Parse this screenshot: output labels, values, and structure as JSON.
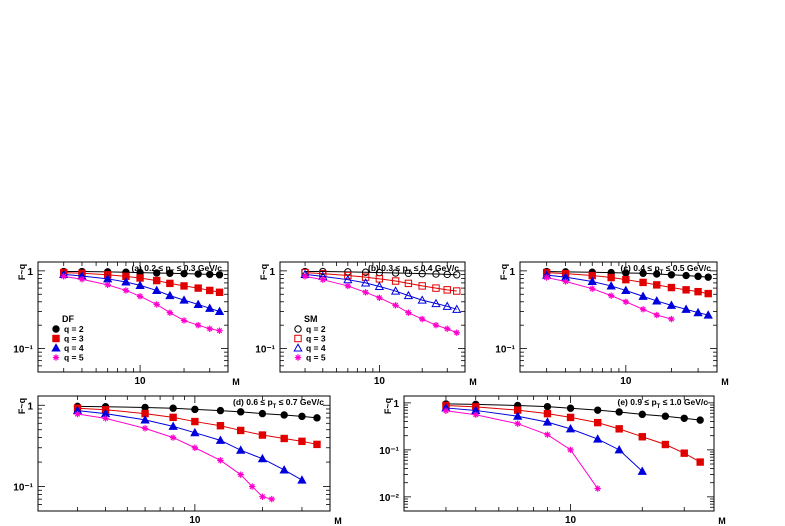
{
  "chart_data": [
    {
      "type": "scatter",
      "title": "(a) 0.2 ≤ p_T ≤ 0.3 GeV/c",
      "title_parts": [
        "(a) 0.2 ≤ p",
        "T",
        " ≤ 0.3 GeV/c"
      ],
      "xlabel": "M",
      "ylabel": "F~q",
      "x_scale": "log",
      "y_scale": "log",
      "xlim": [
        2,
        40
      ],
      "ylim": [
        0.05,
        1.3
      ],
      "x_ticks": [
        {
          "v": 10,
          "label": "10"
        }
      ],
      "y_ticks": [
        {
          "v": 1,
          "label": "1"
        },
        {
          "v": 0.1,
          "label": "10⁻¹"
        }
      ],
      "legend": {
        "title": "DF",
        "placement": "lower-left",
        "entries": [
          "q = 2",
          "q = 3",
          "q = 4",
          "q = 5"
        ]
      },
      "series": [
        {
          "name": "q = 2",
          "color": "#000000",
          "marker": "circle",
          "filled": true,
          "x": [
            3,
            4,
            6,
            8,
            10,
            13,
            16,
            20,
            25,
            30,
            35
          ],
          "y": [
            0.98,
            0.98,
            0.97,
            0.96,
            0.95,
            0.94,
            0.93,
            0.92,
            0.91,
            0.9,
            0.89
          ]
        },
        {
          "name": "q = 3",
          "color": "#e00000",
          "marker": "square",
          "filled": true,
          "x": [
            3,
            4,
            6,
            8,
            10,
            13,
            16,
            20,
            25,
            30,
            35
          ],
          "y": [
            0.95,
            0.93,
            0.89,
            0.85,
            0.81,
            0.75,
            0.69,
            0.64,
            0.6,
            0.56,
            0.53
          ]
        },
        {
          "name": "q = 4",
          "color": "#0000dd",
          "marker": "triangle",
          "filled": true,
          "x": [
            3,
            4,
            6,
            8,
            10,
            13,
            16,
            20,
            25,
            30,
            35
          ],
          "y": [
            0.9,
            0.86,
            0.79,
            0.72,
            0.65,
            0.56,
            0.48,
            0.42,
            0.37,
            0.33,
            0.3
          ]
        },
        {
          "name": "q = 5",
          "color": "#ff00cc",
          "marker": "star",
          "filled": true,
          "x": [
            3,
            4,
            6,
            8,
            10,
            13,
            16,
            20,
            25,
            30,
            35
          ],
          "y": [
            0.85,
            0.78,
            0.66,
            0.56,
            0.47,
            0.37,
            0.29,
            0.23,
            0.2,
            0.18,
            0.17
          ]
        }
      ]
    },
    {
      "type": "scatter",
      "title": "(b) 0.3 ≤ p_T ≤ 0.4 GeV/c",
      "title_parts": [
        "(b) 0.3 ≤ p",
        "T",
        " ≤ 0.4 GeV/c"
      ],
      "xlabel": "M",
      "ylabel": "F~q",
      "x_scale": "log",
      "y_scale": "log",
      "xlim": [
        2,
        40
      ],
      "ylim": [
        0.05,
        1.3
      ],
      "x_ticks": [
        {
          "v": 10,
          "label": "10"
        }
      ],
      "y_ticks": [
        {
          "v": 1,
          "label": "1"
        },
        {
          "v": 0.1,
          "label": "10⁻¹"
        }
      ],
      "legend": {
        "title": "SM",
        "placement": "lower-left",
        "entries": [
          "q = 2",
          "q = 3",
          "q = 4",
          "q = 5"
        ]
      },
      "series": [
        {
          "name": "q = 2",
          "color": "#000000",
          "marker": "circle",
          "filled": false,
          "x": [
            3,
            4,
            6,
            8,
            10,
            13,
            16,
            20,
            25,
            30,
            35
          ],
          "y": [
            0.98,
            0.98,
            0.97,
            0.96,
            0.95,
            0.94,
            0.93,
            0.92,
            0.91,
            0.9,
            0.89
          ]
        },
        {
          "name": "q = 3",
          "color": "#e00000",
          "marker": "square",
          "filled": false,
          "x": [
            3,
            4,
            6,
            8,
            10,
            13,
            16,
            20,
            25,
            30,
            35
          ],
          "y": [
            0.95,
            0.92,
            0.87,
            0.83,
            0.79,
            0.74,
            0.69,
            0.64,
            0.6,
            0.57,
            0.55
          ]
        },
        {
          "name": "q = 4",
          "color": "#0000dd",
          "marker": "triangle",
          "filled": false,
          "x": [
            3,
            4,
            6,
            8,
            10,
            13,
            16,
            20,
            25,
            30,
            35
          ],
          "y": [
            0.9,
            0.85,
            0.77,
            0.7,
            0.63,
            0.55,
            0.48,
            0.42,
            0.38,
            0.35,
            0.32
          ]
        },
        {
          "name": "q = 5",
          "color": "#ff00cc",
          "marker": "star",
          "filled": false,
          "x": [
            3,
            4,
            6,
            8,
            10,
            13,
            16,
            20,
            25,
            30,
            35
          ],
          "y": [
            0.85,
            0.77,
            0.64,
            0.53,
            0.45,
            0.36,
            0.29,
            0.24,
            0.2,
            0.18,
            0.16
          ]
        }
      ]
    },
    {
      "type": "scatter",
      "title": "(c) 0.4 ≤ p_T ≤ 0.5 GeV/c",
      "title_parts": [
        "(c) 0.4 ≤ p",
        "T",
        " ≤ 0.5 GeV/c"
      ],
      "xlabel": "M",
      "ylabel": "F~q",
      "x_scale": "log",
      "y_scale": "log",
      "xlim": [
        2,
        40
      ],
      "ylim": [
        0.05,
        1.3
      ],
      "x_ticks": [
        {
          "v": 10,
          "label": "10"
        }
      ],
      "y_ticks": [
        {
          "v": 1,
          "label": "1"
        },
        {
          "v": 0.1,
          "label": "10⁻¹"
        }
      ],
      "series": [
        {
          "name": "q = 2",
          "color": "#000000",
          "marker": "circle",
          "filled": true,
          "x": [
            3,
            4,
            6,
            8,
            10,
            13,
            16,
            20,
            25,
            30,
            35
          ],
          "y": [
            0.98,
            0.97,
            0.96,
            0.95,
            0.94,
            0.93,
            0.91,
            0.89,
            0.87,
            0.85,
            0.83
          ]
        },
        {
          "name": "q = 3",
          "color": "#e00000",
          "marker": "square",
          "filled": true,
          "x": [
            3,
            4,
            6,
            8,
            10,
            13,
            16,
            20,
            25,
            30,
            35
          ],
          "y": [
            0.95,
            0.92,
            0.87,
            0.82,
            0.77,
            0.71,
            0.66,
            0.61,
            0.57,
            0.54,
            0.51
          ]
        },
        {
          "name": "q = 4",
          "color": "#0000dd",
          "marker": "triangle",
          "filled": true,
          "x": [
            3,
            4,
            6,
            8,
            10,
            13,
            16,
            20,
            25,
            30,
            35
          ],
          "y": [
            0.88,
            0.83,
            0.73,
            0.64,
            0.56,
            0.47,
            0.41,
            0.36,
            0.32,
            0.29,
            0.27
          ]
        },
        {
          "name": "q = 5",
          "color": "#ff00cc",
          "marker": "star",
          "filled": true,
          "x": [
            3,
            4,
            6,
            8,
            10,
            13,
            16,
            20
          ],
          "y": [
            0.82,
            0.73,
            0.59,
            0.48,
            0.4,
            0.32,
            0.27,
            0.24
          ]
        }
      ]
    },
    {
      "type": "scatter",
      "title": "(d) 0.6 ≤ p_T ≤ 0.7 GeV/c",
      "title_parts": [
        "(d) 0.6 ≤ p",
        "T",
        " ≤ 0.7 GeV/c"
      ],
      "xlabel": "M",
      "ylabel": "F~q",
      "x_scale": "log",
      "y_scale": "log",
      "xlim": [
        2,
        40
      ],
      "ylim": [
        0.05,
        1.3
      ],
      "x_ticks": [
        {
          "v": 10,
          "label": "10"
        }
      ],
      "y_ticks": [
        {
          "v": 1,
          "label": "1"
        },
        {
          "v": 0.1,
          "label": "10⁻¹"
        }
      ],
      "series": [
        {
          "name": "q = 2",
          "color": "#000000",
          "marker": "circle",
          "filled": true,
          "x": [
            3,
            4,
            6,
            8,
            10,
            13,
            16,
            20,
            25,
            30,
            35
          ],
          "y": [
            0.97,
            0.96,
            0.94,
            0.92,
            0.89,
            0.86,
            0.83,
            0.79,
            0.76,
            0.73,
            0.7
          ]
        },
        {
          "name": "q = 3",
          "color": "#e00000",
          "marker": "square",
          "filled": true,
          "x": [
            3,
            4,
            6,
            8,
            10,
            13,
            16,
            20,
            25,
            30,
            35
          ],
          "y": [
            0.92,
            0.88,
            0.79,
            0.71,
            0.63,
            0.56,
            0.49,
            0.43,
            0.39,
            0.36,
            0.33
          ]
        },
        {
          "name": "q = 4",
          "color": "#0000dd",
          "marker": "triangle",
          "filled": true,
          "x": [
            3,
            4,
            6,
            8,
            10,
            13,
            16,
            20,
            25,
            30
          ],
          "y": [
            0.86,
            0.79,
            0.66,
            0.55,
            0.46,
            0.37,
            0.28,
            0.22,
            0.16,
            0.12
          ]
        },
        {
          "name": "q = 5",
          "color": "#ff00cc",
          "marker": "star",
          "filled": true,
          "x": [
            3,
            4,
            6,
            8,
            10,
            13,
            16,
            18,
            20,
            22
          ],
          "y": [
            0.78,
            0.69,
            0.52,
            0.4,
            0.3,
            0.21,
            0.14,
            0.1,
            0.075,
            0.07
          ]
        }
      ]
    },
    {
      "type": "scatter",
      "title": "(e) 0.9 ≤ p_T ≤ 1.0 GeV/c",
      "title_parts": [
        "(e) 0.9 ≤ p",
        "T",
        " ≤ 1.0 GeV/c"
      ],
      "xlabel": "M",
      "ylabel": "F~q",
      "x_scale": "log",
      "y_scale": "log",
      "xlim": [
        2,
        40
      ],
      "ylim": [
        0.005,
        1.4
      ],
      "x_ticks": [
        {
          "v": 10,
          "label": "10"
        }
      ],
      "y_ticks": [
        {
          "v": 1,
          "label": "1"
        },
        {
          "v": 0.1,
          "label": "10⁻¹"
        },
        {
          "v": 0.01,
          "label": "10⁻²"
        }
      ],
      "series": [
        {
          "name": "q = 2",
          "color": "#000000",
          "marker": "circle",
          "filled": true,
          "x": [
            3,
            4,
            6,
            8,
            10,
            13,
            16,
            20,
            25,
            30,
            35
          ],
          "y": [
            0.95,
            0.93,
            0.88,
            0.83,
            0.77,
            0.7,
            0.64,
            0.57,
            0.52,
            0.47,
            0.43
          ]
        },
        {
          "name": "q = 3",
          "color": "#e00000",
          "marker": "square",
          "filled": true,
          "x": [
            3,
            4,
            6,
            8,
            10,
            13,
            16,
            20,
            25,
            30,
            35
          ],
          "y": [
            0.88,
            0.82,
            0.7,
            0.59,
            0.49,
            0.38,
            0.28,
            0.19,
            0.13,
            0.085,
            0.055
          ]
        },
        {
          "name": "q = 4",
          "color": "#0000dd",
          "marker": "triangle",
          "filled": true,
          "x": [
            3,
            4,
            6,
            8,
            10,
            13,
            16,
            20
          ],
          "y": [
            0.78,
            0.69,
            0.52,
            0.39,
            0.28,
            0.17,
            0.1,
            0.035
          ]
        },
        {
          "name": "q = 5",
          "color": "#ff00cc",
          "marker": "star",
          "filled": true,
          "x": [
            3,
            4,
            6,
            8,
            10,
            13
          ],
          "y": [
            0.68,
            0.56,
            0.36,
            0.21,
            0.1,
            0.015
          ]
        }
      ]
    }
  ]
}
